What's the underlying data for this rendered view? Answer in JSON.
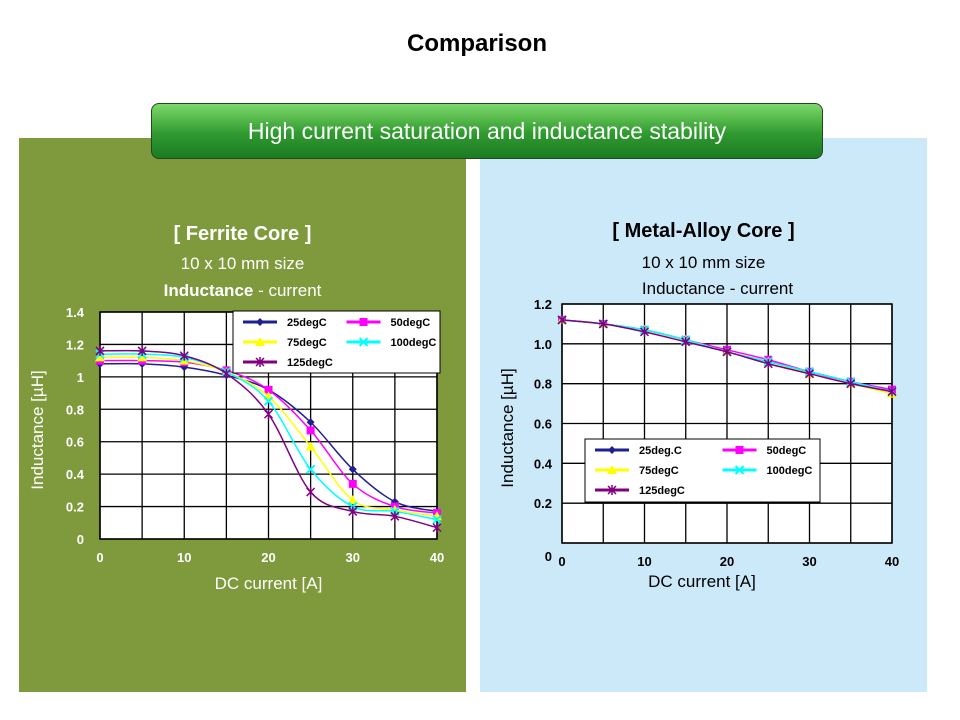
{
  "slide": {
    "title": "Comparison",
    "banner": "High current saturation and inductance stability"
  },
  "colors": {
    "left_panel": "#7f9a3c",
    "right_panel": "#cce9fa",
    "banner": "#2f9a2f"
  },
  "chart_data": [
    {
      "type": "line",
      "title": "[ Ferrite Core ]",
      "subtitle": "10 x 10 mm  size",
      "subtitle2_bold": "Inductance",
      "subtitle2_rest": " - current",
      "xlabel": "DC current [A]",
      "ylabel": "Inductance  [µH]",
      "xlim": [
        0,
        40
      ],
      "ylim": [
        0,
        1.4
      ],
      "x": [
        0,
        5,
        10,
        15,
        20,
        25,
        30,
        35,
        40
      ],
      "xticks": [
        "0",
        "10",
        "20",
        "30",
        "40"
      ],
      "yticks": [
        "0",
        "0.2",
        "0.4",
        "0.6",
        "0.8",
        "1",
        "1.2",
        "1.4"
      ],
      "grid": true,
      "legend": "top-right",
      "series": [
        {
          "name": "25degC",
          "color": "#1f1f8f",
          "marker": "diamond",
          "values": [
            1.08,
            1.08,
            1.06,
            1.01,
            0.92,
            0.72,
            0.43,
            0.23,
            0.17
          ]
        },
        {
          "name": "50degC",
          "color": "#ff00ff",
          "marker": "square",
          "values": [
            1.1,
            1.1,
            1.09,
            1.04,
            0.92,
            0.67,
            0.34,
            0.2,
            0.16
          ]
        },
        {
          "name": "75degC",
          "color": "#ffff00",
          "marker": "triangle",
          "values": [
            1.12,
            1.12,
            1.1,
            1.03,
            0.88,
            0.57,
            0.24,
            0.18,
            0.14
          ]
        },
        {
          "name": "100degC",
          "color": "#00ffff",
          "marker": "x",
          "values": [
            1.14,
            1.14,
            1.12,
            1.03,
            0.85,
            0.43,
            0.2,
            0.17,
            0.12
          ]
        },
        {
          "name": "125degC",
          "color": "#800080",
          "marker": "asterisk",
          "values": [
            1.16,
            1.16,
            1.13,
            1.02,
            0.77,
            0.29,
            0.17,
            0.14,
            0.07
          ]
        }
      ]
    },
    {
      "type": "line",
      "title": "[ Metal-Alloy Core ]",
      "subtitle": "10 x 10 mm  size",
      "subtitle2_bold": "",
      "subtitle2_rest": "Inductance  - current",
      "xlabel": "DC current [A]",
      "ylabel": "Inductance  [µH]",
      "xlim": [
        0,
        40
      ],
      "ylim": [
        0,
        1.2
      ],
      "x": [
        0,
        5,
        10,
        15,
        20,
        25,
        30,
        35,
        40
      ],
      "xticks": [
        "0",
        "10",
        "20",
        "30",
        "40"
      ],
      "yticks": [
        "0",
        "0.2",
        "0.4",
        "0.6",
        "0.8",
        "1.0",
        "1.2"
      ],
      "grid": true,
      "legend": "bottom-center",
      "series": [
        {
          "name": "25deg.C",
          "color": "#1f1f8f",
          "marker": "diamond",
          "values": [
            1.12,
            1.1,
            1.07,
            1.02,
            0.96,
            0.91,
            0.86,
            0.81,
            0.76
          ]
        },
        {
          "name": "50degC",
          "color": "#ff00ff",
          "marker": "square",
          "values": [
            1.12,
            1.1,
            1.07,
            1.02,
            0.97,
            0.92,
            0.86,
            0.81,
            0.77
          ]
        },
        {
          "name": "75degC",
          "color": "#ffff00",
          "marker": "triangle",
          "values": [
            1.12,
            1.1,
            1.07,
            1.02,
            0.96,
            0.91,
            0.85,
            0.8,
            0.75
          ]
        },
        {
          "name": "100degC",
          "color": "#00ffff",
          "marker": "x",
          "values": [
            1.12,
            1.1,
            1.07,
            1.02,
            0.96,
            0.91,
            0.86,
            0.81,
            0.76
          ]
        },
        {
          "name": "125degC",
          "color": "#800080",
          "marker": "asterisk",
          "values": [
            1.12,
            1.1,
            1.06,
            1.01,
            0.96,
            0.9,
            0.85,
            0.8,
            0.76
          ]
        }
      ]
    }
  ]
}
